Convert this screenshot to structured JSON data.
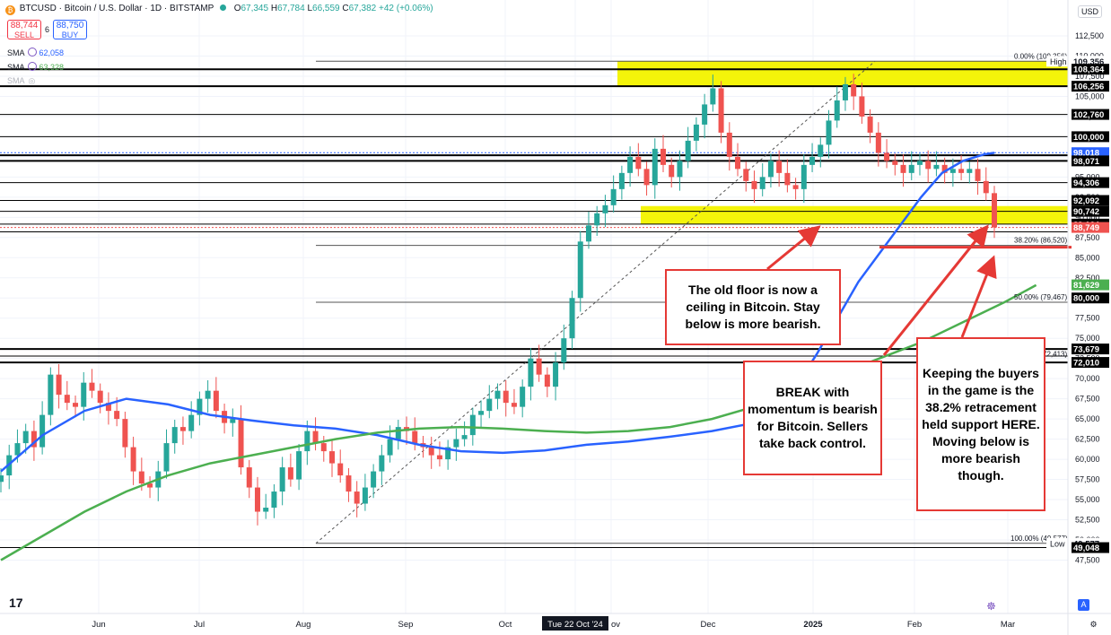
{
  "header": {
    "symbol_line": "BTCUSD · Bitcoin / U.S. Dollar · 1D · BITSTAMP",
    "ohlc": [
      {
        "k": "O",
        "v": "67,345"
      },
      {
        "k": "H",
        "v": "67,784"
      },
      {
        "k": "L",
        "v": "66,559"
      },
      {
        "k": "C",
        "v": "67,382"
      },
      {
        "k": "",
        "v": "+42 (+0.06%)"
      }
    ],
    "sell_price": "88,744",
    "sell_label": "SELL",
    "spread": "6",
    "buy_price": "88,750",
    "buy_label": "BUY",
    "sma1_label": "SMA",
    "sma1_value": "62,058",
    "sma2_label": "SMA",
    "sma2_value": "63,328",
    "sma3_label": "SMA",
    "currency": "USD",
    "tv_logo": "17"
  },
  "colors": {
    "up": "#26a69a",
    "down": "#ef5350",
    "sma_blue": "#2962ff",
    "sma_green": "#4caf50",
    "zone": "#f4f40a",
    "arrow": "#e53935"
  },
  "chart_data": {
    "type": "candlestick",
    "title": "BTCUSD · Bitcoin / U.S. Dollar · 1D · BITSTAMP",
    "x_labels": [
      "Jun",
      "Jul",
      "Aug",
      "Sep",
      "Oct",
      "Tue 22 Oct '24",
      "Nov",
      "Dec",
      "2025",
      "Feb",
      "Mar"
    ],
    "y_ticks": [
      "112,500",
      "110,000",
      "107,500",
      "105,000",
      "102,500",
      "100,000",
      "97,500",
      "95,000",
      "92,500",
      "90,000",
      "87,500",
      "85,000",
      "82,500",
      "80,000",
      "77,500",
      "75,000",
      "72,500",
      "70,000",
      "67,500",
      "65,000",
      "62,500",
      "60,000",
      "57,500",
      "55,000",
      "52,500",
      "50,000",
      "47,500"
    ],
    "ylim": [
      46800,
      114500
    ],
    "price_labels": [
      {
        "v": 109356,
        "t": "109,356",
        "bg": "#ffffff",
        "fg": "#131722",
        "tag": "High"
      },
      {
        "v": 108364,
        "t": "108,364",
        "bg": "#000000",
        "fg": "#ffffff"
      },
      {
        "v": 106256,
        "t": "106,256",
        "bg": "#000000",
        "fg": "#ffffff"
      },
      {
        "v": 102760,
        "t": "102,760",
        "bg": "#000000",
        "fg": "#ffffff"
      },
      {
        "v": 100000,
        "t": "100,000",
        "bg": "#000000",
        "fg": "#ffffff"
      },
      {
        "v": 98018,
        "t": "98,018",
        "bg": "#2962ff",
        "fg": "#ffffff"
      },
      {
        "v": 97000,
        "t": "98,071",
        "bg": "#000000",
        "fg": "#ffffff"
      },
      {
        "v": 94306,
        "t": "94,306",
        "bg": "#000000",
        "fg": "#ffffff"
      },
      {
        "v": 92092,
        "t": "92,092",
        "bg": "#000000",
        "fg": "#ffffff"
      },
      {
        "v": 90742,
        "t": "90,742",
        "bg": "#000000",
        "fg": "#ffffff"
      },
      {
        "v": 89164,
        "t": "89,164",
        "bg": "#000000",
        "fg": "#ffffff"
      },
      {
        "v": 88749,
        "t": "88,749",
        "bg": "#ef5350",
        "fg": "#ffffff"
      },
      {
        "v": 81629,
        "t": "81,629",
        "bg": "#4caf50",
        "fg": "#ffffff"
      },
      {
        "v": 80000,
        "t": "80,000",
        "bg": "#000000",
        "fg": "#ffffff"
      },
      {
        "v": 73679,
        "t": "73,679",
        "bg": "#000000",
        "fg": "#ffffff"
      },
      {
        "v": 72010,
        "t": "72,010",
        "bg": "#000000",
        "fg": "#ffffff"
      },
      {
        "v": 49577,
        "t": "49,577",
        "bg": "#ffffff",
        "fg": "#131722",
        "tag": "Low"
      },
      {
        "v": 49048,
        "t": "49,048",
        "bg": "#000000",
        "fg": "#ffffff"
      }
    ],
    "fib_labels": [
      {
        "v": 109356,
        "t": "0.00% (109,356)"
      },
      {
        "v": 86520,
        "t": "38.20% (86,520)"
      },
      {
        "v": 79467,
        "t": "50.00% (79,467)"
      },
      {
        "v": 72413,
        "t": "61.80% (72,413)"
      },
      {
        "v": 49577,
        "t": "100.00% (49,577)"
      }
    ],
    "zones": [
      {
        "from": 106256,
        "to": 109356
      },
      {
        "from": 89164,
        "to": 91400
      }
    ],
    "sma_blue": [
      [
        0,
        58500
      ],
      [
        20,
        63000
      ],
      [
        40,
        66000
      ],
      [
        60,
        67500
      ],
      [
        80,
        66800
      ],
      [
        100,
        65500
      ],
      [
        120,
        64800
      ],
      [
        140,
        64200
      ],
      [
        160,
        63800
      ],
      [
        180,
        63000
      ],
      [
        200,
        61800
      ],
      [
        220,
        61000
      ],
      [
        240,
        60800
      ],
      [
        260,
        61100
      ],
      [
        280,
        61800
      ],
      [
        300,
        62200
      ],
      [
        320,
        62800
      ],
      [
        340,
        63500
      ],
      [
        360,
        64500
      ],
      [
        370,
        66000
      ],
      [
        380,
        69000
      ],
      [
        390,
        73000
      ],
      [
        400,
        77500
      ],
      [
        410,
        82000
      ],
      [
        420,
        85500
      ],
      [
        430,
        89000
      ],
      [
        440,
        92500
      ],
      [
        450,
        95500
      ],
      [
        460,
        97000
      ],
      [
        470,
        97800
      ],
      [
        475,
        98000
      ]
    ],
    "sma_green": [
      [
        0,
        47500
      ],
      [
        20,
        50500
      ],
      [
        40,
        53500
      ],
      [
        60,
        56000
      ],
      [
        80,
        58000
      ],
      [
        100,
        59500
      ],
      [
        120,
        60500
      ],
      [
        140,
        61500
      ],
      [
        160,
        62500
      ],
      [
        180,
        63300
      ],
      [
        200,
        63800
      ],
      [
        220,
        64000
      ],
      [
        240,
        63800
      ],
      [
        260,
        63500
      ],
      [
        280,
        63300
      ],
      [
        300,
        63500
      ],
      [
        320,
        64000
      ],
      [
        340,
        65000
      ],
      [
        360,
        66500
      ],
      [
        380,
        68500
      ],
      [
        400,
        70500
      ],
      [
        420,
        72500
      ],
      [
        440,
        74500
      ],
      [
        460,
        77000
      ],
      [
        480,
        79500
      ],
      [
        495,
        81600
      ]
    ],
    "candles_close": [
      58000,
      60500,
      62000,
      63500,
      61500,
      65500,
      70500,
      68000,
      67000,
      66500,
      69500,
      68500,
      67000,
      66000,
      65000,
      61500,
      58500,
      57000,
      56500,
      58500,
      62000,
      64000,
      63500,
      65500,
      67500,
      68500,
      66000,
      64500,
      65000,
      59000,
      56500,
      53500,
      54000,
      56000,
      59000,
      57500,
      61000,
      63500,
      62000,
      61000,
      59500,
      58000,
      56000,
      54500,
      56500,
      58500,
      60500,
      62500,
      64000,
      63500,
      62000,
      61500,
      60500,
      60000,
      61500,
      62500,
      63000,
      65500,
      66000,
      67500,
      68500,
      67000,
      66500,
      69000,
      72500,
      70500,
      69000,
      72000,
      75000,
      80000,
      87000,
      89000,
      90500,
      91500,
      93500,
      95500,
      97500,
      96000,
      94000,
      98500,
      96500,
      95000,
      97000,
      99500,
      101500,
      104000,
      106000,
      100500,
      97500,
      96000,
      94500,
      93500,
      95000,
      97000,
      95500,
      94000,
      93500,
      96500,
      97500,
      99000,
      102000,
      104500,
      106500,
      105000,
      102500,
      100500,
      98000,
      97000,
      96500,
      95500,
      96500,
      97000,
      96000,
      96500,
      95500,
      96000,
      95500,
      96000,
      94500,
      93000,
      88749
    ],
    "candle_x_range": [
      1,
      1108
    ]
  },
  "callouts": [
    {
      "text": "The old floor is now a ceiling in Bitcoin. Stay below is more bearish."
    },
    {
      "text": "BREAK with momentum is bearish for Bitcoin. Sellers take back control."
    },
    {
      "text": "Keeping the buyers in the game is the 38.2% retracement held support HERE. Moving below is more bearish though."
    }
  ],
  "bottom": {
    "lock_icon_label": "A",
    "settings_icon": "gear-icon"
  }
}
